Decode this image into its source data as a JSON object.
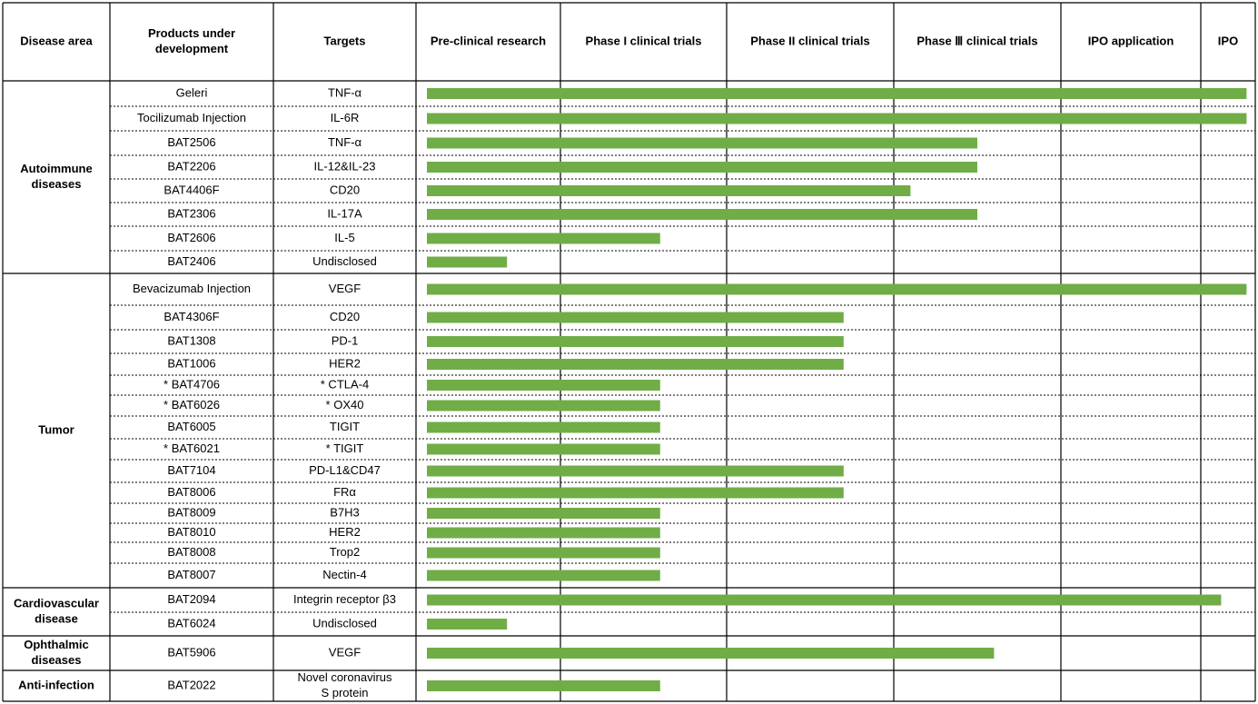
{
  "chart_data": {
    "type": "bar",
    "columns": [
      "Disease area",
      "Products under development",
      "Targets",
      "Pre-clinical research",
      "Phase I clinical trials",
      "Phase II clinical trials",
      "Phase Ⅲ clinical trials",
      "IPO application",
      "IPO"
    ],
    "stages": [
      "Pre-clinical research",
      "Phase I clinical trials",
      "Phase II clinical trials",
      "Phase Ⅲ clinical trials",
      "IPO application",
      "IPO"
    ],
    "bar_color": "#70ad47",
    "groups": [
      {
        "area": "Autoimmune diseases",
        "rows": [
          {
            "product": "Geleri",
            "target": "TNF-α",
            "progress": 5.9
          },
          {
            "product": "Tocilizumab Injection",
            "target": "IL-6R",
            "progress": 5.9
          },
          {
            "product": "BAT2506",
            "target": "TNF-α",
            "progress": 3.5
          },
          {
            "product": "BAT2206",
            "target": "IL-12&IL-23",
            "progress": 3.5
          },
          {
            "product": "BAT4406F",
            "target": "CD20",
            "progress": 3.1
          },
          {
            "product": "BAT2306",
            "target": "IL-17A",
            "progress": 3.5
          },
          {
            "product": "BAT2606",
            "target": "IL-5",
            "progress": 1.6
          },
          {
            "product": "BAT2406",
            "target": "Undisclosed",
            "progress": 0.6
          }
        ]
      },
      {
        "area": "Tumor",
        "rows": [
          {
            "product": "Bevacizumab Injection",
            "target": "VEGF",
            "progress": 5.9
          },
          {
            "product": "BAT4306F",
            "target": "CD20",
            "progress": 2.7
          },
          {
            "product": "BAT1308",
            "target": "PD-1",
            "progress": 2.7
          },
          {
            "product": "BAT1006",
            "target": "HER2",
            "progress": 2.7
          },
          {
            "product": "* BAT4706",
            "target": "* CTLA-4",
            "progress": 1.6
          },
          {
            "product": "* BAT6026",
            "target": "* OX40",
            "progress": 1.6
          },
          {
            "product": "BAT6005",
            "target": "TIGIT",
            "progress": 1.6
          },
          {
            "product": "* BAT6021",
            "target": "* TIGIT",
            "progress": 1.6
          },
          {
            "product": "BAT7104",
            "target": "PD-L1&CD47",
            "progress": 2.7
          },
          {
            "product": "BAT8006",
            "target": "FRα",
            "progress": 2.7
          },
          {
            "product": "BAT8009",
            "target": "B7H3",
            "progress": 1.6
          },
          {
            "product": "BAT8010",
            "target": "HER2",
            "progress": 1.6
          },
          {
            "product": "BAT8008",
            "target": "Trop2",
            "progress": 1.6
          },
          {
            "product": "BAT8007",
            "target": "Nectin-4",
            "progress": 1.6
          }
        ]
      },
      {
        "area": "Cardiovascular disease",
        "rows": [
          {
            "product": "BAT2094",
            "target": "Integrin receptor β3",
            "progress": 5.4
          },
          {
            "product": "BAT6024",
            "target": "Undisclosed",
            "progress": 0.6
          }
        ]
      },
      {
        "area": "Ophthalmic diseases",
        "rows": [
          {
            "product": "BAT5906",
            "target": "VEGF",
            "progress": 3.6
          }
        ]
      },
      {
        "area": "Anti-infection",
        "rows": [
          {
            "product": "BAT2022",
            "target": "Novel coronavirus S protein",
            "progress": 1.6
          }
        ]
      }
    ]
  }
}
